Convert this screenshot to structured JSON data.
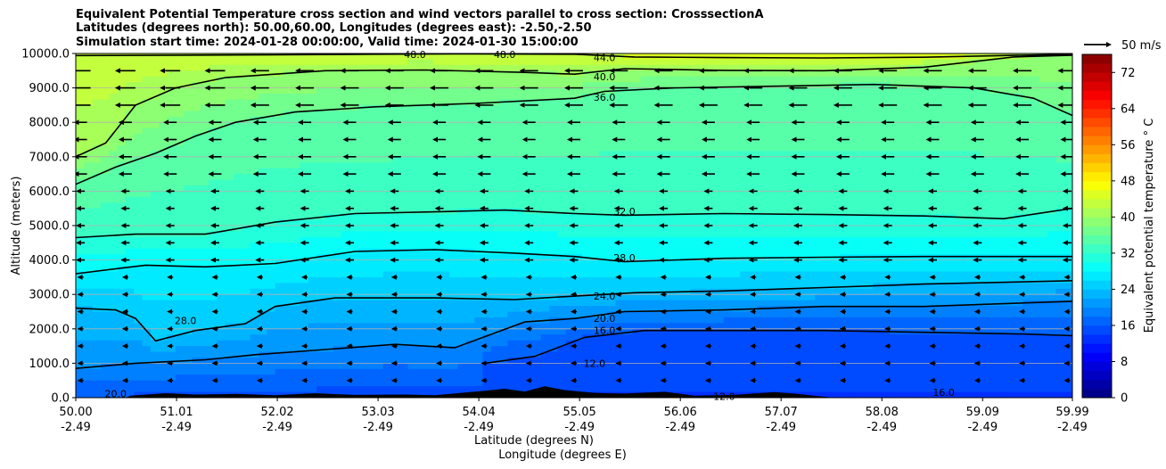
{
  "title_lines": [
    "Equivalent Potential Temperature cross section and wind vectors parallel to cross section: CrosssectionA",
    "Latitudes (degrees north): 50.00,60.00, Longitudes (degrees east): -2.50,-2.50",
    "Simulation start time: 2024-01-28 00:00:00, Valid time: 2024-01-30 15:00:00"
  ],
  "chart_data": {
    "type": "contour",
    "xlabel": "Latitude (degrees N)",
    "xlabel2": "Longitude (degrees E)",
    "ylabel": "Altitude (meters)",
    "xlim": [
      50.0,
      59.99
    ],
    "ylim": [
      0,
      10000
    ],
    "x_ticks_lat": [
      "50.00",
      "51.01",
      "52.02",
      "53.03",
      "54.04",
      "55.05",
      "56.06",
      "57.07",
      "58.08",
      "59.09",
      "59.99"
    ],
    "x_ticks_lon": [
      "-2.49",
      "-2.49",
      "-2.49",
      "-2.49",
      "-2.49",
      "-2.49",
      "-2.49",
      "-2.49",
      "-2.49",
      "-2.49",
      "-2.49"
    ],
    "y_ticks": [
      "0.0",
      "1000.0",
      "2000.0",
      "3000.0",
      "4000.0",
      "5000.0",
      "6000.0",
      "7000.0",
      "8000.0",
      "9000.0",
      "10000.0"
    ],
    "grid": "horizontal",
    "colormap": "jet",
    "colorbar": {
      "label": "Equivalent potential temperature $^\\circ$C",
      "label_text": "Equivalent potential temperature ° C",
      "min": 0,
      "max": 76,
      "step": 2,
      "ticks": [
        "0",
        "8",
        "16",
        "24",
        "32",
        "40",
        "48",
        "56",
        "64",
        "72"
      ]
    },
    "quiver_key": {
      "label": "50 m/s"
    },
    "contour_levels": [
      {
        "value": 44,
        "label": "44.0",
        "heights": [
          [
            50.0,
            9940
          ],
          [
            51.0,
            9950
          ],
          [
            52.0,
            9960
          ],
          [
            53.0,
            9980
          ],
          [
            54.0,
            9990
          ],
          [
            55.0,
            9980
          ],
          [
            55.6,
            9900
          ],
          [
            56.5,
            9880
          ],
          [
            57.5,
            9870
          ],
          [
            58.5,
            9890
          ],
          [
            59.5,
            9950
          ],
          [
            59.99,
            9980
          ]
        ]
      },
      {
        "value": 40,
        "label": "40.0",
        "heights": [
          [
            50.0,
            7000
          ],
          [
            50.3,
            7400
          ],
          [
            50.6,
            8500
          ],
          [
            51.0,
            9000
          ],
          [
            51.5,
            9300
          ],
          [
            52.5,
            9500
          ],
          [
            53.5,
            9520
          ],
          [
            54.5,
            9450
          ],
          [
            55.0,
            9400
          ],
          [
            55.5,
            9560
          ],
          [
            56.5,
            9510
          ],
          [
            57.5,
            9500
          ],
          [
            58.5,
            9600
          ],
          [
            59.4,
            9900
          ],
          [
            59.99,
            9950
          ]
        ]
      },
      {
        "value": 36,
        "label": "36.0",
        "heights": [
          [
            50.0,
            6200
          ],
          [
            50.4,
            6700
          ],
          [
            50.8,
            7100
          ],
          [
            51.2,
            7600
          ],
          [
            51.6,
            8000
          ],
          [
            52.2,
            8300
          ],
          [
            53.0,
            8450
          ],
          [
            54.0,
            8550
          ],
          [
            55.0,
            8700
          ],
          [
            55.3,
            8900
          ],
          [
            56.0,
            9000
          ],
          [
            57.0,
            9050
          ],
          [
            58.0,
            9100
          ],
          [
            59.0,
            9000
          ],
          [
            59.6,
            8700
          ],
          [
            59.99,
            8200
          ]
        ]
      },
      {
        "value": 32,
        "label": "32.0",
        "heights": [
          [
            50.0,
            4650
          ],
          [
            50.6,
            4750
          ],
          [
            51.3,
            4750
          ],
          [
            52.0,
            5100
          ],
          [
            52.8,
            5350
          ],
          [
            53.6,
            5400
          ],
          [
            54.3,
            5450
          ],
          [
            55.0,
            5350
          ],
          [
            55.5,
            5300
          ],
          [
            56.5,
            5350
          ],
          [
            57.5,
            5320
          ],
          [
            58.5,
            5280
          ],
          [
            59.3,
            5200
          ],
          [
            59.99,
            5500
          ]
        ]
      },
      {
        "value": 28,
        "label": "28.0",
        "heights": [
          [
            50.0,
            3600
          ],
          [
            50.7,
            3850
          ],
          [
            51.3,
            3800
          ],
          [
            52.0,
            3900
          ],
          [
            52.8,
            4250
          ],
          [
            53.6,
            4300
          ],
          [
            54.4,
            4200
          ],
          [
            55.0,
            4100
          ],
          [
            55.5,
            3950
          ],
          [
            56.5,
            4050
          ],
          [
            57.5,
            4080
          ],
          [
            58.5,
            4100
          ],
          [
            59.99,
            4100
          ]
        ]
      },
      {
        "value": 24,
        "label": "24.0",
        "heights": [
          [
            50.0,
            2600
          ],
          [
            50.4,
            2550
          ],
          [
            50.6,
            2300
          ],
          [
            50.8,
            1650
          ],
          [
            51.2,
            1950
          ],
          [
            51.7,
            2150
          ],
          [
            52.0,
            2650
          ],
          [
            52.6,
            2900
          ],
          [
            53.6,
            2900
          ],
          [
            54.4,
            2850
          ],
          [
            55.0,
            2950
          ],
          [
            55.6,
            3050
          ],
          [
            56.5,
            3100
          ],
          [
            57.5,
            3200
          ],
          [
            58.5,
            3300
          ],
          [
            59.99,
            3400
          ]
        ]
      },
      {
        "value": 20,
        "label": "20.0",
        "heights": [
          [
            50.0,
            850
          ],
          [
            50.6,
            1000
          ],
          [
            51.3,
            1100
          ],
          [
            51.8,
            1250
          ],
          [
            52.5,
            1400
          ],
          [
            53.2,
            1550
          ],
          [
            53.8,
            1450
          ],
          [
            54.5,
            2200
          ],
          [
            55.0,
            2300
          ],
          [
            55.5,
            2500
          ],
          [
            56.5,
            2550
          ],
          [
            57.5,
            2650
          ],
          [
            58.5,
            2650
          ],
          [
            59.99,
            2800
          ]
        ]
      },
      {
        "value": 16,
        "label": "16.0",
        "heights": [
          [
            54.1,
            1000
          ],
          [
            54.6,
            1200
          ],
          [
            55.1,
            1750
          ],
          [
            55.7,
            1950
          ],
          [
            56.5,
            1950
          ],
          [
            57.5,
            1950
          ],
          [
            58.5,
            1900
          ],
          [
            59.5,
            1850
          ],
          [
            59.99,
            1800
          ]
        ]
      }
    ],
    "contour_labels": [
      {
        "label": "44.0",
        "x": 55.3,
        "y": 9880
      },
      {
        "label": "40.0",
        "x": 55.3,
        "y": 9330
      },
      {
        "label": "36.0",
        "x": 55.3,
        "y": 8730
      },
      {
        "label": "32.0",
        "x": 55.5,
        "y": 5420
      },
      {
        "label": "28.0",
        "x": 55.5,
        "y": 4070
      },
      {
        "label": "24.0",
        "x": 55.3,
        "y": 2950
      },
      {
        "label": "20.0",
        "x": 55.3,
        "y": 2300
      },
      {
        "label": "16.0",
        "x": 55.3,
        "y": 1950
      },
      {
        "label": "28.0",
        "x": 51.1,
        "y": 2240
      },
      {
        "label": "20.0",
        "x": 50.4,
        "y": 120
      },
      {
        "label": "12.0",
        "x": 55.2,
        "y": 1000
      },
      {
        "label": "12.0",
        "x": 56.5,
        "y": 40
      },
      {
        "label": "16.0",
        "x": 58.7,
        "y": 150
      },
      {
        "label": "48.0",
        "x": 53.4,
        "y": 9980
      },
      {
        "label": "48.0",
        "x": 54.3,
        "y": 9980
      }
    ],
    "wind_vectors": "westward (toward decreasing latitude), strongest above 7000 m"
  }
}
